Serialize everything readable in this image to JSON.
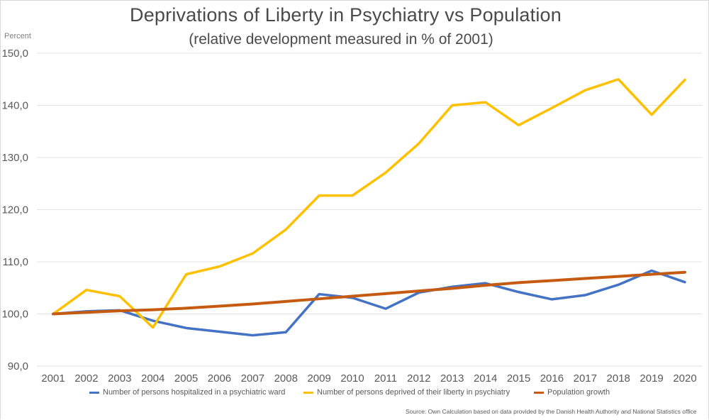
{
  "chart_data": {
    "type": "line",
    "title": "Deprivations of Liberty in Psychiatry vs Population",
    "subtitle": "(relative development measured in % of 2001)",
    "xlabel": "",
    "ylabel": "Percent",
    "ylim": [
      90,
      150
    ],
    "y_ticks": [
      "90,0",
      "100,0",
      "110,0",
      "120,0",
      "130,0",
      "140,0",
      "150,0"
    ],
    "y_tick_values": [
      90,
      100,
      110,
      120,
      130,
      140,
      150
    ],
    "grid": true,
    "legend_position": "bottom",
    "x": [
      "2001",
      "2002",
      "2003",
      "2004",
      "2005",
      "2006",
      "2007",
      "2008",
      "2009",
      "2010",
      "2011",
      "2012",
      "2013",
      "2014",
      "2015",
      "2016",
      "2017",
      "2018",
      "2019",
      "2020"
    ],
    "series": [
      {
        "name": "Number of persons hospitalized in a psychiatric ward",
        "color": "#4472c4",
        "values": [
          100.0,
          100.5,
          100.7,
          98.7,
          97.3,
          96.6,
          95.9,
          96.5,
          103.8,
          103.1,
          101.0,
          104.1,
          105.2,
          105.9,
          104.2,
          102.8,
          103.6,
          105.6,
          108.3,
          106.1
        ]
      },
      {
        "name": "Number  of persons deprived of their liberty in psychiatry",
        "color": "#ffc000",
        "values": [
          100.0,
          104.6,
          103.4,
          97.4,
          107.6,
          109.1,
          111.6,
          116.2,
          122.7,
          122.7,
          127.1,
          132.7,
          140.0,
          140.6,
          136.2,
          139.5,
          142.9,
          145.0,
          138.2,
          144.9
        ]
      },
      {
        "name": "Population growth",
        "color": "#c55a11",
        "values": [
          100.0,
          100.3,
          100.6,
          100.8,
          101.1,
          101.5,
          101.9,
          102.4,
          102.9,
          103.4,
          103.9,
          104.4,
          104.9,
          105.5,
          106.0,
          106.4,
          106.8,
          107.2,
          107.6,
          108.0
        ]
      }
    ],
    "source": "Source: Own Calculation based on data provided by the Danish Health Authority and National Statistics office"
  }
}
